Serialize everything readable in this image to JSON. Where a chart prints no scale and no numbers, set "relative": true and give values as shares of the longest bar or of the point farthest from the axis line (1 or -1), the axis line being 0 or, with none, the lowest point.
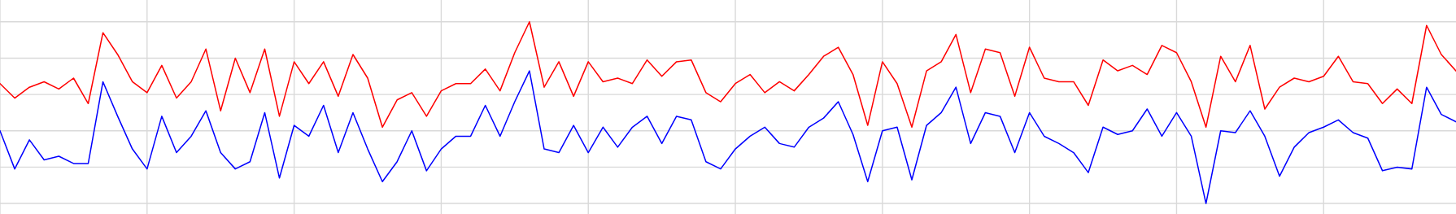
{
  "chart_data": {
    "type": "line",
    "relative": true,
    "grid": true,
    "marker": "none",
    "line_style": "solid",
    "categories": [
      null,
      null,
      null,
      null,
      null,
      null,
      null,
      null,
      null,
      null,
      null,
      null,
      null,
      null,
      null,
      null,
      null,
      null,
      null,
      null,
      null,
      null,
      null,
      null,
      null,
      null,
      null,
      null,
      null,
      null,
      null,
      null,
      null,
      null,
      null,
      null,
      null,
      null,
      null,
      null,
      null,
      null,
      null,
      null,
      null,
      null,
      null,
      null,
      null,
      null,
      null,
      null,
      null,
      null,
      null,
      null,
      null,
      null,
      null,
      null,
      null,
      null,
      null,
      null,
      null,
      null,
      null,
      null,
      null,
      null,
      null,
      null,
      null,
      null,
      null,
      null,
      null,
      null,
      null,
      null,
      null,
      null,
      null,
      null,
      null,
      null,
      null,
      null,
      null,
      null,
      null,
      null,
      null,
      null,
      null,
      null,
      null,
      null,
      null,
      null
    ],
    "series": [
      {
        "color": "#ff0000",
        "values": [
          0.66,
          0.58,
          0.64,
          0.67,
          0.63,
          0.69,
          0.55,
          0.94,
          0.82,
          0.67,
          0.61,
          0.76,
          0.58,
          0.67,
          0.85,
          0.51,
          0.8,
          0.61,
          0.85,
          0.48,
          0.78,
          0.66,
          0.78,
          0.59,
          0.82,
          0.69,
          0.42,
          0.57,
          0.61,
          0.48,
          0.62,
          0.66,
          0.66,
          0.74,
          0.62,
          0.83,
          1.0,
          0.64,
          0.78,
          0.59,
          0.78,
          0.67,
          0.69,
          0.66,
          0.79,
          0.7,
          0.78,
          0.79,
          0.61,
          0.56,
          0.66,
          0.71,
          0.61,
          0.67,
          0.62,
          0.71,
          0.81,
          0.86,
          0.71,
          0.43,
          0.78,
          0.66,
          0.42,
          0.73,
          0.78,
          0.93,
          0.61,
          0.85,
          0.83,
          0.59,
          0.86,
          0.69,
          0.67,
          0.67,
          0.54,
          0.79,
          0.73,
          0.76,
          0.71,
          0.87,
          0.83,
          0.67,
          0.42,
          0.81,
          0.67,
          0.87,
          0.52,
          0.64,
          0.69,
          0.67,
          0.7,
          0.81,
          0.67,
          0.66,
          0.55,
          0.63,
          0.55,
          0.98,
          0.82,
          0.73
        ]
      },
      {
        "color": "#0000ff",
        "values": [
          0.4,
          0.19,
          0.35,
          0.24,
          0.26,
          0.22,
          0.22,
          0.67,
          0.48,
          0.3,
          0.19,
          0.48,
          0.28,
          0.37,
          0.51,
          0.28,
          0.19,
          0.23,
          0.5,
          0.14,
          0.43,
          0.37,
          0.54,
          0.28,
          0.5,
          0.3,
          0.12,
          0.23,
          0.4,
          0.18,
          0.3,
          0.37,
          0.37,
          0.54,
          0.37,
          0.56,
          0.73,
          0.3,
          0.28,
          0.43,
          0.28,
          0.42,
          0.31,
          0.42,
          0.48,
          0.33,
          0.48,
          0.46,
          0.23,
          0.19,
          0.3,
          0.37,
          0.42,
          0.33,
          0.31,
          0.42,
          0.47,
          0.56,
          0.38,
          0.12,
          0.4,
          0.42,
          0.13,
          0.43,
          0.5,
          0.64,
          0.33,
          0.5,
          0.48,
          0.28,
          0.5,
          0.37,
          0.33,
          0.28,
          0.17,
          0.42,
          0.38,
          0.4,
          0.52,
          0.37,
          0.5,
          0.37,
          0.0,
          0.4,
          0.39,
          0.51,
          0.37,
          0.15,
          0.31,
          0.39,
          0.42,
          0.46,
          0.39,
          0.36,
          0.18,
          0.2,
          0.19,
          0.64,
          0.49,
          0.45
        ]
      }
    ]
  }
}
